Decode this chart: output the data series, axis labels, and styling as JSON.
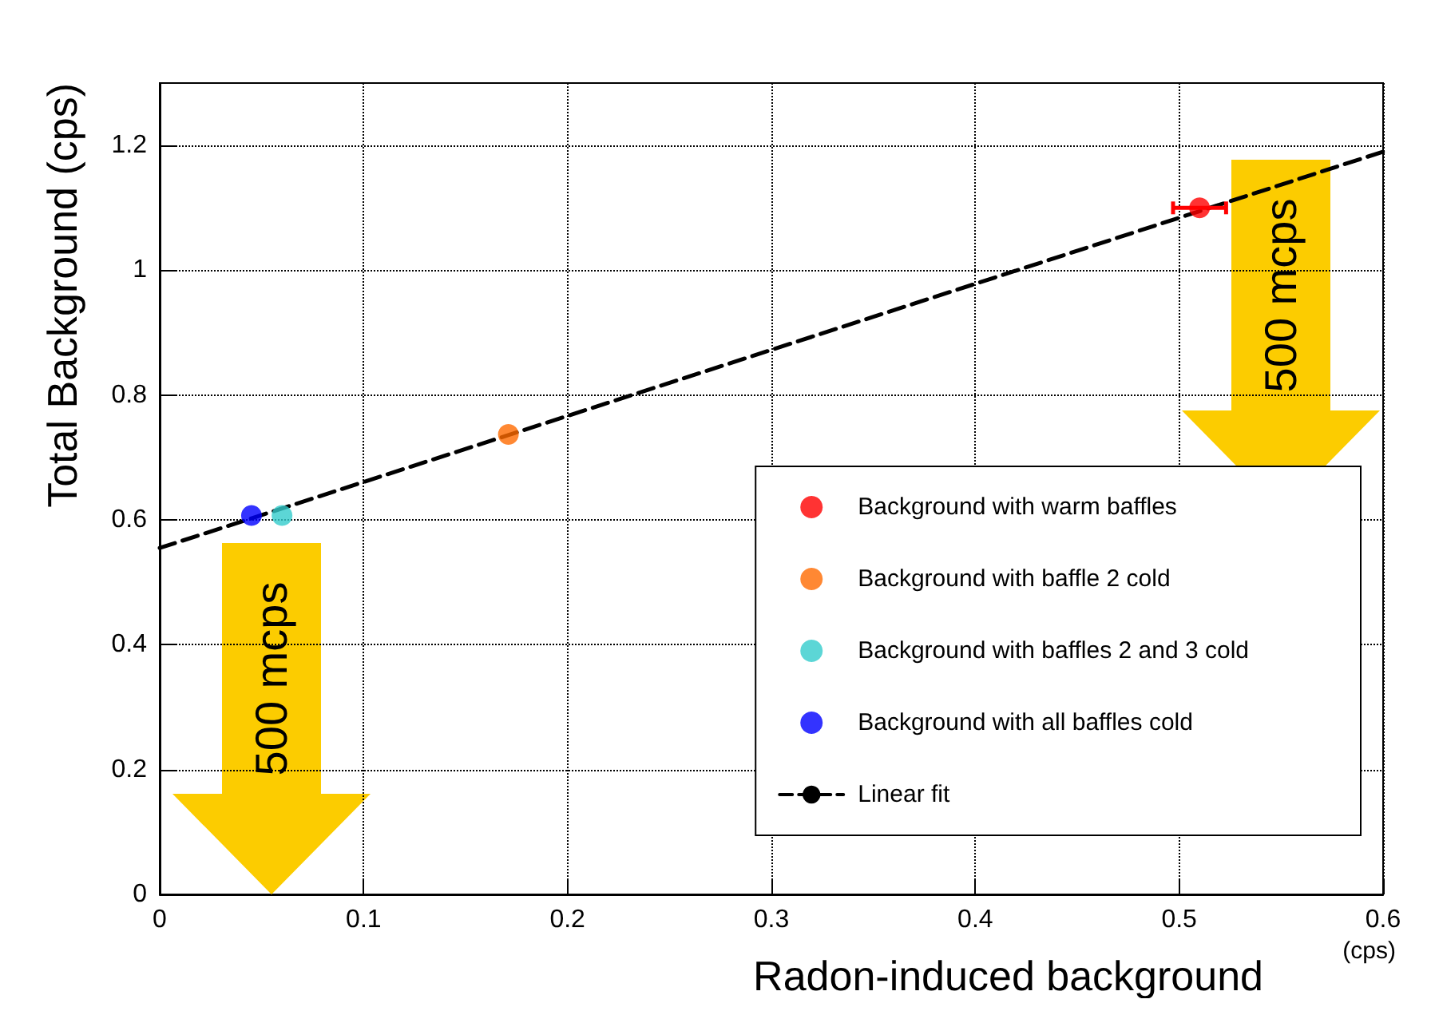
{
  "chart_data": {
    "type": "scatter",
    "xlabel": "Radon-induced background",
    "ylabel": "Total Background (cps)",
    "xlim": [
      0,
      0.6
    ],
    "xticks": [
      0,
      0.1,
      0.2,
      0.3,
      0.4,
      0.5,
      0.6
    ],
    "ylim": [
      0,
      1.3
    ],
    "yticks": [
      0,
      0.2,
      0.4,
      0.6,
      0.8,
      1,
      1.2
    ],
    "grid": true,
    "legend": "bottom right",
    "marker": "circle",
    "series": [
      {
        "name": "Background with warm baffles",
        "color": "#ff0000",
        "x": [
          0.51
        ],
        "values": [
          1.1
        ],
        "xerrors": [
          0.013
        ]
      },
      {
        "name": "Background with baffle 2 cold",
        "color": "#ff6a00",
        "x": [
          0.171
        ],
        "values": [
          0.737
        ]
      },
      {
        "name": "Background with baffles 2 and 3 cold",
        "color": "#33cccc",
        "x": [
          0.06
        ],
        "values": [
          0.607
        ]
      },
      {
        "name": "Background with all baffles cold",
        "color": "#0000ff",
        "x": [
          0.045
        ],
        "values": [
          0.607
        ]
      },
      {
        "name": "Linear fit",
        "type": "line",
        "color": "#000000",
        "line_style": "dashed",
        "marker": "none",
        "x": [
          0,
          0.6
        ],
        "values": [
          0.555,
          1.19
        ]
      }
    ],
    "annotations": [
      "500 mcps",
      "500 mcps",
      "(cps)"
    ]
  }
}
